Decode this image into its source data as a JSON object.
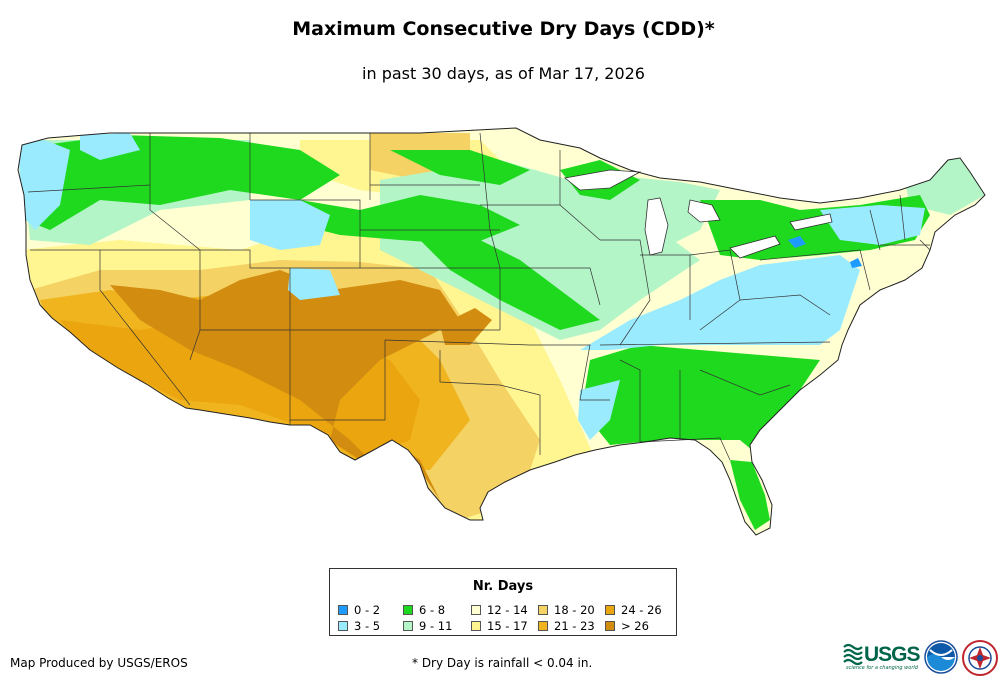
{
  "title": "Maximum Consecutive Dry Days (CDD)*",
  "subtitle": "in past 30 days, as of Mar 17, 2026",
  "legend": {
    "title": "Nr. Days",
    "items": [
      {
        "label": "0 - 2",
        "color": "#1e9bff"
      },
      {
        "label": "3 - 5",
        "color": "#9bebff"
      },
      {
        "label": "6 - 8",
        "color": "#1ed91e"
      },
      {
        "label": "9 - 11",
        "color": "#b4f5c8"
      },
      {
        "label": "12 - 14",
        "color": "#ffffd2"
      },
      {
        "label": "15 - 17",
        "color": "#fff591"
      },
      {
        "label": "18 - 20",
        "color": "#f5d264"
      },
      {
        "label": "21 - 23",
        "color": "#f0b41e"
      },
      {
        "label": "24 - 26",
        "color": "#eba50f"
      },
      {
        "label": "> 26",
        "color": "#d28c0f"
      }
    ]
  },
  "credit": "Map Produced by USGS/EROS",
  "footnote": "* Dry Day is rainfall < 0.04 in.",
  "logos": {
    "usgs": "USGS",
    "usgs_tagline": "science for a changing world",
    "noaa": "noaa",
    "nws": "National Weather Service"
  }
}
